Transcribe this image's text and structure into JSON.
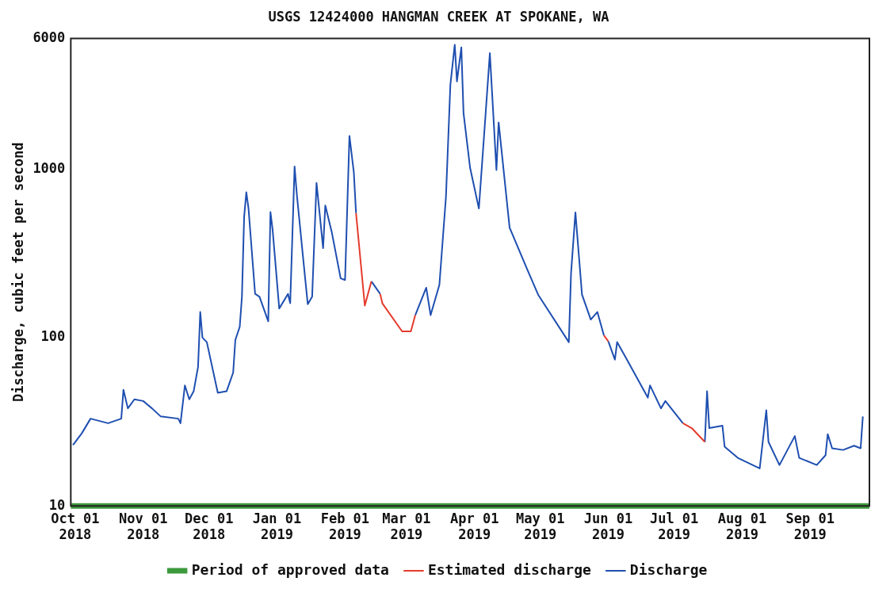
{
  "chart_data": {
    "type": "line",
    "title": "USGS 12424000 HANGMAN CREEK AT SPOKANE, WA",
    "ylabel": "Discharge, cubic feet per second",
    "log": "y",
    "grid": false,
    "legend": "bottom",
    "marker": "none",
    "line_style": "solid",
    "xlim": [
      "2018-09-29",
      "2019-09-28"
    ],
    "xticks": [
      {
        "value": "2018-10-01",
        "label": "Oct 01\n2018"
      },
      {
        "value": "2018-11-01",
        "label": "Nov 01\n2018"
      },
      {
        "value": "2018-12-01",
        "label": "Dec 01\n2018"
      },
      {
        "value": "2019-01-01",
        "label": "Jan 01\n2019"
      },
      {
        "value": "2019-02-01",
        "label": "Feb 01\n2019"
      },
      {
        "value": "2019-03-01",
        "label": "Mar 01\n2019"
      },
      {
        "value": "2019-04-01",
        "label": "Apr 01\n2019"
      },
      {
        "value": "2019-05-01",
        "label": "May 01\n2019"
      },
      {
        "value": "2019-06-01",
        "label": "Jun 01\n2019"
      },
      {
        "value": "2019-07-01",
        "label": "Jul 01\n2019"
      },
      {
        "value": "2019-08-01",
        "label": "Aug 01\n2019"
      },
      {
        "value": "2019-09-01",
        "label": "Sep 01\n2019"
      }
    ],
    "ylim": [
      10,
      6000
    ],
    "yticks": [
      10,
      100,
      1000,
      6000
    ],
    "series": [
      {
        "name": "Discharge",
        "color": "#1f4fb0",
        "x": [
          "2018-09-30",
          "2018-10-04",
          "2018-10-08",
          "2018-10-16",
          "2018-10-22",
          "2018-10-23",
          "2018-10-25",
          "2018-10-28",
          "2018-11-01",
          "2018-11-05",
          "2018-11-09",
          "2018-11-17",
          "2018-11-18",
          "2018-11-20",
          "2018-11-22",
          "2018-11-24",
          "2018-11-26",
          "2018-11-27",
          "2018-11-28",
          "2018-11-30",
          "2018-12-05",
          "2018-12-09",
          "2018-12-12",
          "2018-12-13",
          "2018-12-15",
          "2018-12-16",
          "2018-12-17",
          "2018-12-18",
          "2018-12-19",
          "2018-12-22",
          "2018-12-24",
          "2018-12-28",
          "2018-12-29",
          "2018-12-30",
          "2019-01-02",
          "2019-01-06",
          "2019-01-07",
          "2019-01-09",
          "2019-01-10",
          "2019-01-13",
          "2019-01-15",
          "2019-01-17",
          "2019-01-19",
          "2019-01-22",
          "2019-01-23",
          "2019-01-26",
          "2019-01-30",
          "2019-02-01",
          "2019-02-03",
          "2019-02-05",
          "2019-02-06",
          "2019-02-08",
          "2019-02-13",
          "2019-02-17",
          "2019-02-18",
          "2019-03-05",
          "2019-03-10",
          "2019-03-12",
          "2019-03-16",
          "2019-03-19",
          "2019-03-21",
          "2019-03-23",
          "2019-03-24",
          "2019-03-26",
          "2019-03-27",
          "2019-03-30",
          "2019-04-03",
          "2019-04-06",
          "2019-04-08",
          "2019-04-11",
          "2019-04-12",
          "2019-04-17",
          "2019-04-25",
          "2019-04-30",
          "2019-05-14",
          "2019-05-15",
          "2019-05-17",
          "2019-05-20",
          "2019-05-24",
          "2019-05-27",
          "2019-05-30",
          "2019-05-31",
          "2019-06-01",
          "2019-06-04",
          "2019-06-05",
          "2019-06-09",
          "2019-06-19",
          "2019-06-20",
          "2019-06-25",
          "2019-06-27",
          "2019-07-05",
          "2019-07-10",
          "2019-07-15",
          "2019-07-16",
          "2019-07-17",
          "2019-07-23",
          "2019-07-24",
          "2019-07-30",
          "2019-08-09",
          "2019-08-12",
          "2019-08-13",
          "2019-08-18",
          "2019-08-25",
          "2019-08-27",
          "2019-09-04",
          "2019-09-08",
          "2019-09-09",
          "2019-09-11",
          "2019-09-16",
          "2019-09-21",
          "2019-09-24",
          "2019-09-25"
        ],
        "values": [
          23,
          27,
          33,
          31,
          33,
          49,
          38,
          43,
          42,
          38,
          34,
          33,
          31,
          52,
          43,
          48,
          67,
          142,
          100,
          94,
          47,
          48,
          62,
          97,
          116,
          175,
          520,
          730,
          585,
          182,
          175,
          125,
          557,
          435,
          149,
          182,
          160,
          1040,
          715,
          287,
          158,
          175,
          830,
          340,
          610,
          420,
          225,
          220,
          1580,
          960,
          550,
          null,
          216,
          182,
          null,
          136,
          198,
          136,
          206,
          690,
          3170,
          5500,
          3330,
          5300,
          2160,
          1020,
          585,
          2080,
          4900,
          990,
          1900,
          450,
          255,
          180,
          94,
          240,
          555,
          180,
          128,
          142,
          103,
          null,
          95,
          74,
          94,
          76,
          44,
          52,
          38,
          42,
          31,
          null,
          24,
          48,
          29,
          30,
          22.5,
          19.3,
          16.7,
          37,
          24,
          17.5,
          26,
          19.3,
          17.5,
          20,
          26.7,
          22,
          21.5,
          22.8,
          22,
          34
        ]
      },
      {
        "name": "Estimated discharge",
        "color": "#e53b2c",
        "x": [
          "2019-02-06",
          "2019-02-10",
          "2019-02-13",
          "2019-02-15",
          "2019-02-17",
          "2019-02-18",
          "2019-02-27",
          "2019-03-03",
          "2019-03-05",
          "2019-03-20",
          "2019-05-30",
          "2019-06-01",
          "2019-06-15",
          "2019-07-05",
          "2019-07-09",
          "2019-07-15"
        ],
        "values": [
          550,
          155,
          216,
          null,
          182,
          160,
          109,
          109,
          136,
          null,
          103,
          95,
          null,
          31,
          29,
          24
        ]
      },
      {
        "name": "Period of approved data",
        "color": "#3c9a3c",
        "x": [
          "2018-09-29",
          "2019-09-28"
        ],
        "values": [
          10,
          10
        ]
      }
    ]
  }
}
